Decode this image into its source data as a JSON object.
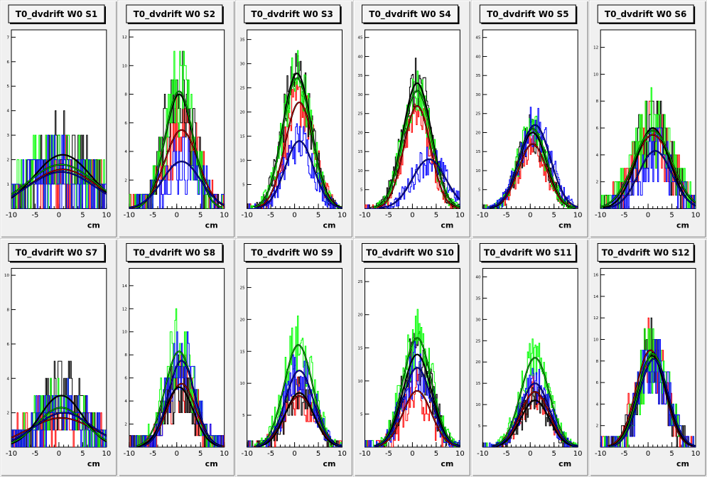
{
  "canvas": {
    "background": "#d4d4d4"
  },
  "colors": {
    "s0": "#ff0000",
    "s1": "#000000",
    "s2": "#00ff00",
    "s3": "#0000ff",
    "fit": "#000000"
  },
  "chart_data": [
    {
      "type": "histogram",
      "title": "T0_dvdrift W0 S1",
      "xlabel": "cm",
      "xlim": [
        -10,
        10
      ],
      "xticks": [
        "-10",
        "-5",
        "0",
        "5",
        "10"
      ],
      "yticks": [
        1,
        2,
        3,
        4,
        5,
        6,
        7
      ],
      "ylim": [
        0,
        7.3
      ],
      "series": [
        {
          "color": "#ff0000",
          "amp": 1.6,
          "mu": 0.8,
          "sigma": 7
        },
        {
          "color": "#000000",
          "amp": 2.2,
          "mu": 0.8,
          "sigma": 6
        },
        {
          "color": "#00ff00",
          "amp": 1.8,
          "mu": 0.5,
          "sigma": 7
        },
        {
          "color": "#0000ff",
          "amp": 1.5,
          "mu": 0.5,
          "sigma": 7
        }
      ]
    },
    {
      "type": "histogram",
      "title": "T0_dvdrift W0 S2",
      "xlabel": "cm",
      "xlim": [
        -10,
        10
      ],
      "xticks": [
        "-10",
        "-5",
        "0",
        "5",
        "10"
      ],
      "yticks": [
        2,
        4,
        6,
        8,
        10,
        12
      ],
      "ylim": [
        0,
        12.5
      ],
      "series": [
        {
          "color": "#ff0000",
          "amp": 5.5,
          "mu": 1,
          "sigma": 3.5
        },
        {
          "color": "#000000",
          "amp": 8,
          "mu": 0.5,
          "sigma": 3
        },
        {
          "color": "#00ff00",
          "amp": 8.2,
          "mu": 0.5,
          "sigma": 3
        },
        {
          "color": "#0000ff",
          "amp": 3.3,
          "mu": 1,
          "sigma": 4
        }
      ]
    },
    {
      "type": "histogram",
      "title": "T0_dvdrift W0 S3",
      "xlabel": "cm",
      "xlim": [
        -10,
        10
      ],
      "xticks": [
        "-10",
        "-5",
        "0",
        "5",
        "10"
      ],
      "yticks": [
        5,
        10,
        15,
        20,
        25,
        30,
        35
      ],
      "ylim": [
        0,
        37
      ],
      "series": [
        {
          "color": "#ff0000",
          "amp": 22,
          "mu": 1,
          "sigma": 3
        },
        {
          "color": "#000000",
          "amp": 28,
          "mu": 0.5,
          "sigma": 3
        },
        {
          "color": "#00ff00",
          "amp": 27,
          "mu": 0.5,
          "sigma": 3
        },
        {
          "color": "#0000ff",
          "amp": 14,
          "mu": 1,
          "sigma": 3
        }
      ]
    },
    {
      "type": "histogram",
      "title": "T0_dvdrift W0 S4",
      "xlabel": "cm",
      "xlim": [
        -10,
        10
      ],
      "xticks": [
        "-10",
        "-5",
        "0",
        "5",
        "10"
      ],
      "yticks": [
        5,
        10,
        15,
        20,
        25,
        30,
        35,
        40,
        45
      ],
      "ylim": [
        0,
        47
      ],
      "series": [
        {
          "color": "#ff0000",
          "amp": 27,
          "mu": 1,
          "sigma": 2.8
        },
        {
          "color": "#000000",
          "amp": 33,
          "mu": 1,
          "sigma": 3
        },
        {
          "color": "#00ff00",
          "amp": 31,
          "mu": 1,
          "sigma": 3
        },
        {
          "color": "#0000ff",
          "amp": 13,
          "mu": 3.5,
          "sigma": 3.5
        }
      ]
    },
    {
      "type": "histogram",
      "title": "T0_dvdrift W0 S5",
      "xlabel": "cm",
      "xlim": [
        -10,
        10
      ],
      "xticks": [
        "-10",
        "-5",
        "0",
        "5",
        "10"
      ],
      "yticks": [
        5,
        10,
        15,
        20,
        25,
        30,
        35,
        40,
        45
      ],
      "ylim": [
        0,
        47
      ],
      "series": [
        {
          "color": "#ff0000",
          "amp": 17,
          "mu": 0.5,
          "sigma": 3
        },
        {
          "color": "#000000",
          "amp": 20,
          "mu": 0.5,
          "sigma": 3
        },
        {
          "color": "#00ff00",
          "amp": 21,
          "mu": 0.5,
          "sigma": 3
        },
        {
          "color": "#0000ff",
          "amp": 22,
          "mu": 1,
          "sigma": 3.2
        }
      ]
    },
    {
      "type": "histogram",
      "title": "T0_dvdrift W0 S6",
      "xlabel": "cm",
      "xlim": [
        -10,
        10
      ],
      "xticks": [
        "-10",
        "-5",
        "0",
        "5",
        "10"
      ],
      "yticks": [
        2,
        4,
        6,
        8,
        10,
        12
      ],
      "ylim": [
        0,
        13.3
      ],
      "series": [
        {
          "color": "#ff0000",
          "amp": 5.5,
          "mu": 1,
          "sigma": 4
        },
        {
          "color": "#000000",
          "amp": 6,
          "mu": 1,
          "sigma": 3.5
        },
        {
          "color": "#00ff00",
          "amp": 5.8,
          "mu": 1,
          "sigma": 4
        },
        {
          "color": "#0000ff",
          "amp": 4.3,
          "mu": 1.5,
          "sigma": 3.5
        }
      ]
    },
    {
      "type": "histogram",
      "title": "T0_dvdrift W0 S7",
      "xlabel": "cm",
      "xlim": [
        -10,
        10
      ],
      "xticks": [
        "-10",
        "-5",
        "0",
        "5",
        "10"
      ],
      "yticks": [
        2,
        4,
        6,
        8,
        10
      ],
      "ylim": [
        0,
        10.4
      ],
      "series": [
        {
          "color": "#ff0000",
          "amp": 1.7,
          "mu": 0.5,
          "sigma": 7
        },
        {
          "color": "#000000",
          "amp": 3,
          "mu": 0.5,
          "sigma": 4.5
        },
        {
          "color": "#00ff00",
          "amp": 2.3,
          "mu": 0.5,
          "sigma": 5
        },
        {
          "color": "#0000ff",
          "amp": 2,
          "mu": 1,
          "sigma": 6
        }
      ]
    },
    {
      "type": "histogram",
      "title": "T0_dvdrift W0 S8",
      "xlabel": "cm",
      "xlim": [
        -10,
        10
      ],
      "xticks": [
        "-10",
        "-5",
        "0",
        "5",
        "10"
      ],
      "yticks": [
        2,
        4,
        6,
        8,
        10,
        12,
        14
      ],
      "ylim": [
        0,
        15.5
      ],
      "series": [
        {
          "color": "#ff0000",
          "amp": 5.5,
          "mu": 1,
          "sigma": 3
        },
        {
          "color": "#000000",
          "amp": 5.2,
          "mu": 0.5,
          "sigma": 3
        },
        {
          "color": "#00ff00",
          "amp": 8.3,
          "mu": 0.5,
          "sigma": 3
        },
        {
          "color": "#0000ff",
          "amp": 7.5,
          "mu": 1,
          "sigma": 2.8
        }
      ]
    },
    {
      "type": "histogram",
      "title": "T0_dvdrift W0 S9",
      "xlabel": "cm",
      "xlim": [
        -10,
        10
      ],
      "xticks": [
        "-10",
        "-5",
        "0",
        "5",
        "10"
      ],
      "yticks": [
        5,
        10,
        15,
        20,
        25
      ],
      "ylim": [
        0,
        28
      ],
      "series": [
        {
          "color": "#ff0000",
          "amp": 8,
          "mu": 1,
          "sigma": 3.2
        },
        {
          "color": "#000000",
          "amp": 8.5,
          "mu": 1,
          "sigma": 3
        },
        {
          "color": "#00ff00",
          "amp": 16,
          "mu": 0.8,
          "sigma": 3
        },
        {
          "color": "#0000ff",
          "amp": 12,
          "mu": 1,
          "sigma": 3
        }
      ]
    },
    {
      "type": "histogram",
      "title": "T0_dvdrift W0 S10",
      "xlabel": "cm",
      "xlim": [
        -10,
        10
      ],
      "xticks": [
        "-10",
        "-5",
        "0",
        "5",
        "10"
      ],
      "yticks": [
        5,
        10,
        15,
        20,
        25
      ],
      "ylim": [
        0,
        27
      ],
      "series": [
        {
          "color": "#ff0000",
          "amp": 8.5,
          "mu": 1,
          "sigma": 3
        },
        {
          "color": "#000000",
          "amp": 14,
          "mu": 1,
          "sigma": 3
        },
        {
          "color": "#00ff00",
          "amp": 16.5,
          "mu": 1,
          "sigma": 3
        },
        {
          "color": "#0000ff",
          "amp": 12,
          "mu": 1,
          "sigma": 3
        }
      ]
    },
    {
      "type": "histogram",
      "title": "T0_dvdrift W0 S11",
      "xlabel": "cm",
      "xlim": [
        -10,
        10
      ],
      "xticks": [
        "-10",
        "-5",
        "0",
        "5",
        "10"
      ],
      "yticks": [
        5,
        10,
        15,
        20,
        25,
        30,
        35,
        40
      ],
      "ylim": [
        0,
        42
      ],
      "series": [
        {
          "color": "#ff0000",
          "amp": 13,
          "mu": 1,
          "sigma": 3
        },
        {
          "color": "#000000",
          "amp": 11,
          "mu": 1,
          "sigma": 3
        },
        {
          "color": "#00ff00",
          "amp": 21,
          "mu": 1,
          "sigma": 3
        },
        {
          "color": "#0000ff",
          "amp": 15,
          "mu": 1,
          "sigma": 3
        }
      ]
    },
    {
      "type": "histogram",
      "title": "T0_dvdrift W0 S12",
      "xlabel": "cm",
      "xlim": [
        -10,
        10
      ],
      "xticks": [
        "-10",
        "-5",
        "0",
        "5",
        "10"
      ],
      "yticks": [
        2,
        4,
        6,
        8,
        10,
        12,
        14,
        16
      ],
      "ylim": [
        0,
        16.6
      ],
      "series": [
        {
          "color": "#ff0000",
          "amp": 9,
          "mu": 0.5,
          "sigma": 3
        },
        {
          "color": "#000000",
          "amp": 8.5,
          "mu": 0.8,
          "sigma": 3
        },
        {
          "color": "#00ff00",
          "amp": 8.7,
          "mu": 1,
          "sigma": 3
        },
        {
          "color": "#0000ff",
          "amp": 8.2,
          "mu": 1.2,
          "sigma": 3
        }
      ]
    }
  ]
}
